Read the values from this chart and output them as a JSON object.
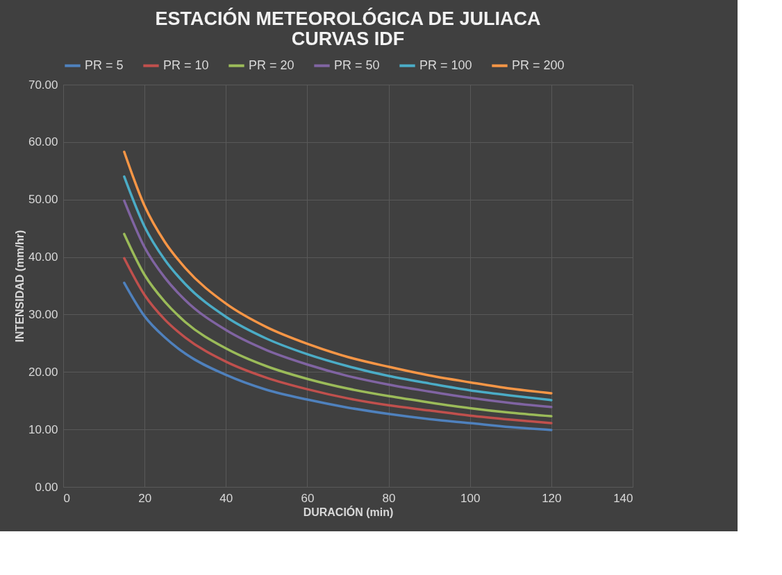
{
  "chart_data": {
    "type": "line",
    "title": [
      "ESTACIÓN METEOROLÓGICA DE JULIACA",
      "CURVAS IDF"
    ],
    "xlabel": "DURACIÓN (min)",
    "ylabel": "INTENSIDAD (mm/hr)",
    "x": [
      15,
      20,
      25,
      30,
      40,
      50,
      60,
      70,
      80,
      90,
      100,
      110,
      120
    ],
    "series": [
      {
        "name": "PR = 5",
        "color": "#4f81bd",
        "values": [
          35.5,
          29.7,
          26.0,
          23.2,
          19.5,
          16.9,
          15.2,
          13.8,
          12.7,
          11.8,
          11.1,
          10.4,
          9.9
        ]
      },
      {
        "name": "PR = 10",
        "color": "#c0504d",
        "values": [
          39.8,
          33.4,
          29.1,
          26.0,
          21.8,
          19.0,
          17.0,
          15.4,
          14.2,
          13.3,
          12.4,
          11.7,
          11.1
        ]
      },
      {
        "name": "PR = 20",
        "color": "#9bbb59",
        "values": [
          44.0,
          36.9,
          32.2,
          28.7,
          24.1,
          21.0,
          18.8,
          17.1,
          15.8,
          14.7,
          13.7,
          12.9,
          12.3
        ]
      },
      {
        "name": "PR = 50",
        "color": "#8064a2",
        "values": [
          49.8,
          41.7,
          36.4,
          32.5,
          27.3,
          23.8,
          21.3,
          19.3,
          17.8,
          16.6,
          15.5,
          14.6,
          13.9
        ]
      },
      {
        "name": "PR = 100",
        "color": "#4bacc6",
        "values": [
          54.0,
          45.3,
          39.5,
          35.3,
          29.6,
          25.8,
          23.1,
          21.0,
          19.3,
          18.0,
          16.8,
          15.9,
          15.1
        ]
      },
      {
        "name": "PR = 200",
        "color": "#f79646",
        "values": [
          58.3,
          48.9,
          42.6,
          38.1,
          31.9,
          27.8,
          24.9,
          22.6,
          20.9,
          19.4,
          18.2,
          17.1,
          16.3
        ]
      }
    ],
    "xlim": [
      0,
      140
    ],
    "xticks": [
      0,
      20,
      40,
      60,
      80,
      100,
      120,
      140
    ],
    "ylim": [
      0,
      70
    ],
    "yticks": [
      {
        "value": 0,
        "label": "0.00"
      },
      {
        "value": 10,
        "label": "10.00"
      },
      {
        "value": 20,
        "label": "20.00"
      },
      {
        "value": 30,
        "label": "30.00"
      },
      {
        "value": 40,
        "label": "40.00"
      },
      {
        "value": 50,
        "label": "50.00"
      },
      {
        "value": 60,
        "label": "60.00"
      },
      {
        "value": 70,
        "label": "70.00"
      }
    ],
    "grid": true,
    "legend": "top",
    "marker": "none",
    "line_style": "solid"
  }
}
